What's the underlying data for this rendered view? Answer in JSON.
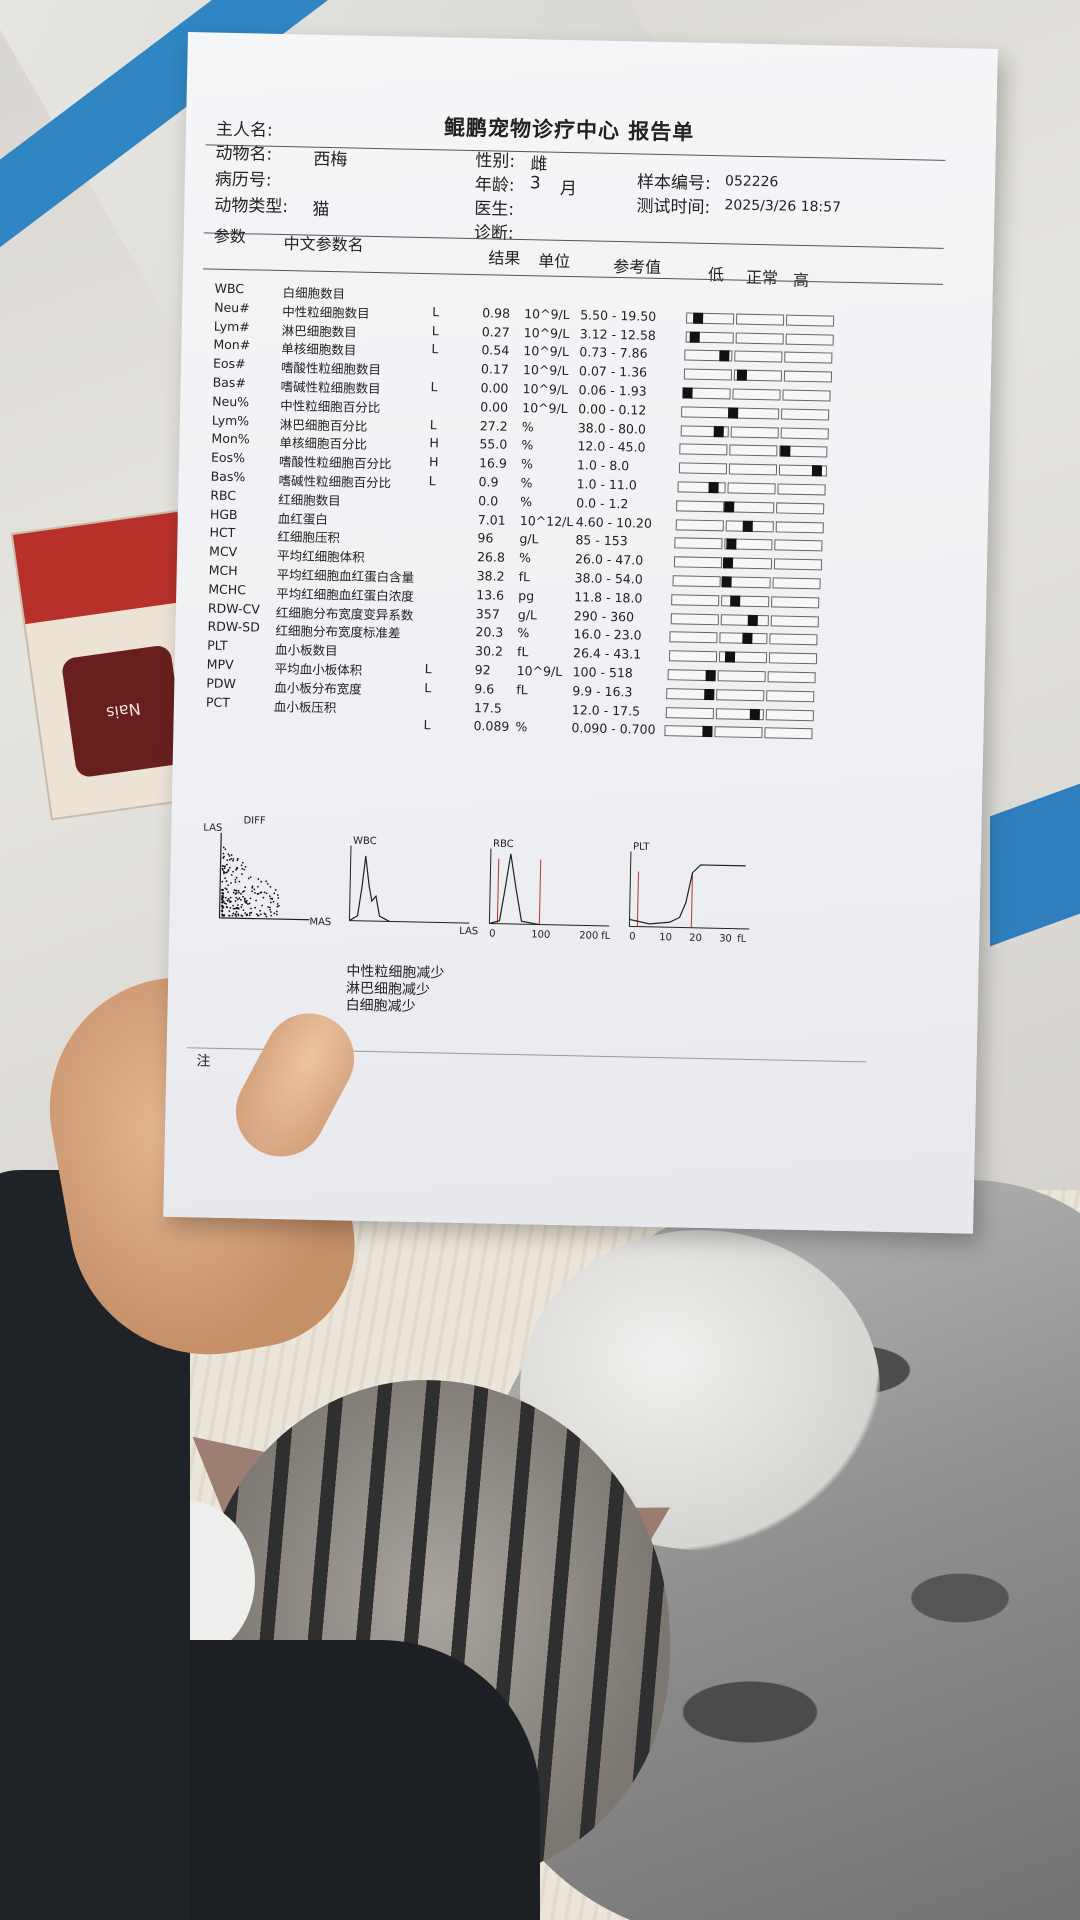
{
  "report": {
    "title": "鲲鹏宠物诊疗中心 报告单",
    "owner_label": "主人名:",
    "animal_label": "动物名:",
    "animal_name": "西梅",
    "record_label": "病历号:",
    "type_label": "动物类型:",
    "type_value": "猫",
    "sex_label": "性别:",
    "sex_value": "雌",
    "age_label": "年龄:",
    "age_value": "3",
    "age_unit": "月",
    "doctor_label": "医生:",
    "diagnosis_label": "诊断:",
    "sample_label": "样本编号:",
    "sample_value": "052226",
    "time_label": "测试时间:",
    "time_value": "2025/3/26 18:57",
    "col_param": "参数",
    "col_cn": "中文参数名",
    "col_result": "结果",
    "col_unit": "单位",
    "col_ref": "参考值",
    "col_low": "低",
    "col_normal": "正常",
    "col_high": "高",
    "rows": [
      {
        "code": "WBC",
        "name": "白细胞数目",
        "flag": "",
        "result": "",
        "unit": "",
        "ref": "",
        "level": null
      },
      {
        "code": "Neu#",
        "name": "中性粒细胞数目",
        "flag": "L",
        "result": "0.98",
        "unit": "10^9/L",
        "ref": "5.50  -  19.50",
        "level": 0.05
      },
      {
        "code": "Lym#",
        "name": "淋巴细胞数目",
        "flag": "L",
        "result": "0.27",
        "unit": "10^9/L",
        "ref": "3.12  -  12.58",
        "level": 0.03
      },
      {
        "code": "Mon#",
        "name": "单核细胞数目",
        "flag": "L",
        "result": "0.54",
        "unit": "10^9/L",
        "ref": "0.73  -  7.86",
        "level": 0.25
      },
      {
        "code": "Eos#",
        "name": "嗜酸性粒细胞数目",
        "flag": "",
        "result": "0.17",
        "unit": "10^9/L",
        "ref": "0.07  -  1.36",
        "level": 0.38
      },
      {
        "code": "Bas#",
        "name": "嗜碱性粒细胞数目",
        "flag": "L",
        "result": "0.00",
        "unit": "10^9/L",
        "ref": "0.06  -  1.93",
        "level": 0.0
      },
      {
        "code": "Neu%",
        "name": "中性粒细胞百分比",
        "flag": "",
        "result": "0.00",
        "unit": "10^9/L",
        "ref": "0.00  -  0.12",
        "level": 0.33
      },
      {
        "code": "Lym%",
        "name": "淋巴细胞百分比",
        "flag": "L",
        "result": "27.2",
        "unit": "%",
        "ref": "38.0  -  80.0",
        "level": 0.24
      },
      {
        "code": "Mon%",
        "name": "单核细胞百分比",
        "flag": "H",
        "result": "55.0",
        "unit": "%",
        "ref": "12.0  -  45.0",
        "level": 0.72
      },
      {
        "code": "Eos%",
        "name": "嗜酸性粒细胞百分比",
        "flag": "H",
        "result": "16.9",
        "unit": "%",
        "ref": "1.0  -  8.0",
        "level": 0.95
      },
      {
        "code": "Bas%",
        "name": "嗜碱性粒细胞百分比",
        "flag": "L",
        "result": "0.9",
        "unit": "%",
        "ref": "1.0  -  11.0",
        "level": 0.22
      },
      {
        "code": "RBC",
        "name": "红细胞数目",
        "flag": "",
        "result": "0.0",
        "unit": "%",
        "ref": "0.0  -  1.2",
        "level": 0.34
      },
      {
        "code": "HGB",
        "name": "血红蛋白",
        "flag": "",
        "result": "7.01",
        "unit": "10^12/L",
        "ref": "4.60  -  10.20",
        "level": 0.48
      },
      {
        "code": "HCT",
        "name": "红细胞压积",
        "flag": "",
        "result": "96",
        "unit": "g/L",
        "ref": "85  -  153",
        "level": 0.37
      },
      {
        "code": "MCV",
        "name": "平均红细胞体积",
        "flag": "",
        "result": "26.8",
        "unit": "%",
        "ref": "26.0  -  47.0",
        "level": 0.35
      },
      {
        "code": "MCH",
        "name": "平均红细胞血红蛋白含量",
        "flag": "",
        "result": "38.2",
        "unit": "fL",
        "ref": "38.0  -  54.0",
        "level": 0.35
      },
      {
        "code": "MCHC",
        "name": "平均红细胞血红蛋白浓度",
        "flag": "",
        "result": "13.6",
        "unit": "pg",
        "ref": "11.8  -  18.0",
        "level": 0.42
      },
      {
        "code": "RDW-CV",
        "name": "红细胞分布宽度变异系数",
        "flag": "",
        "result": "357",
        "unit": "g/L",
        "ref": "290  -  360",
        "level": 0.55
      },
      {
        "code": "RDW-SD",
        "name": "红细胞分布宽度标准差",
        "flag": "",
        "result": "20.3",
        "unit": "%",
        "ref": "16.0  -  23.0",
        "level": 0.52
      },
      {
        "code": "PLT",
        "name": "血小板数目",
        "flag": "",
        "result": "30.2",
        "unit": "fL",
        "ref": "26.4  -  43.1",
        "level": 0.4
      },
      {
        "code": "MPV",
        "name": "平均血小板体积",
        "flag": "L",
        "result": "92",
        "unit": "10^9/L",
        "ref": "100  -  518",
        "level": 0.27
      },
      {
        "code": "PDW",
        "name": "血小板分布宽度",
        "flag": "L",
        "result": "9.6",
        "unit": "fL",
        "ref": "9.9  -  16.3",
        "level": 0.27
      },
      {
        "code": "PCT",
        "name": "血小板压积",
        "flag": "",
        "result": "17.5",
        "unit": "",
        "ref": "12.0  -  17.5",
        "level": 0.6
      },
      {
        "code": "",
        "name": "",
        "flag": "L",
        "result": "0.089",
        "unit": "%",
        "ref": "0.090  -  0.700",
        "level": 0.27
      }
    ],
    "plots": {
      "diff_las": "LAS",
      "diff_title": "DIFF",
      "diff_mas": "MAS",
      "wbc_title": "WBC",
      "wbc_x": "LAS",
      "rbc_title": "RBC",
      "rbc_ticks": [
        "0",
        "100",
        "200",
        "fL"
      ],
      "plt_title": "PLT",
      "plt_ticks": [
        "0",
        "10",
        "20",
        "30",
        "fL"
      ]
    },
    "interpretation": [
      "中性粒细胞减少",
      "淋巴细胞减少",
      "白细胞减少"
    ],
    "note_label": "注"
  },
  "colors": {
    "paper": "#f2f3f6",
    "desk_blue": "#2f86c2",
    "jacket": "#1f2227"
  }
}
